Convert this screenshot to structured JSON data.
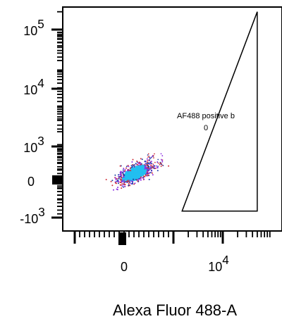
{
  "chart_data": {
    "type": "scatter",
    "subtype": "flow-cytometry-density-dot-plot",
    "xlabel": "Alexa Fluor 488-A",
    "ylabel": "",
    "x_scale": "biexponential",
    "y_scale": "biexponential",
    "xlim": [
      -1500,
      50000
    ],
    "ylim": [
      -1500,
      200000
    ],
    "x_ticks": [
      {
        "value": 0,
        "label": "0",
        "base": "",
        "exp": ""
      },
      {
        "value": 10000,
        "label": "10^4",
        "base": "10",
        "exp": "4"
      }
    ],
    "y_ticks": [
      {
        "value": -1000,
        "label": "-10^3",
        "base": "-10",
        "exp": "3"
      },
      {
        "value": 0,
        "label": "0",
        "base": "",
        "exp": ""
      },
      {
        "value": 1000,
        "label": "10^3",
        "base": "10",
        "exp": "3"
      },
      {
        "value": 10000,
        "label": "10^4",
        "base": "10",
        "exp": "4"
      },
      {
        "value": 100000,
        "label": "10^5",
        "base": "10",
        "exp": "5"
      }
    ],
    "population": {
      "center": [
        220,
        200
      ],
      "spread_x": [
        50,
        1200
      ],
      "spread_y": [
        50,
        700
      ],
      "dominant_color": "#22bff0",
      "edge_colors": [
        "#1f3fa8",
        "#d0303a",
        "#8a2be2"
      ]
    },
    "gate": {
      "name": "AF488 positive b",
      "value": "0",
      "shape": "triangle",
      "vertices": [
        [
          1500,
          -1500
        ],
        [
          50000,
          200000
        ],
        [
          50000,
          -1500
        ]
      ]
    },
    "grid": false,
    "legend": "none"
  }
}
